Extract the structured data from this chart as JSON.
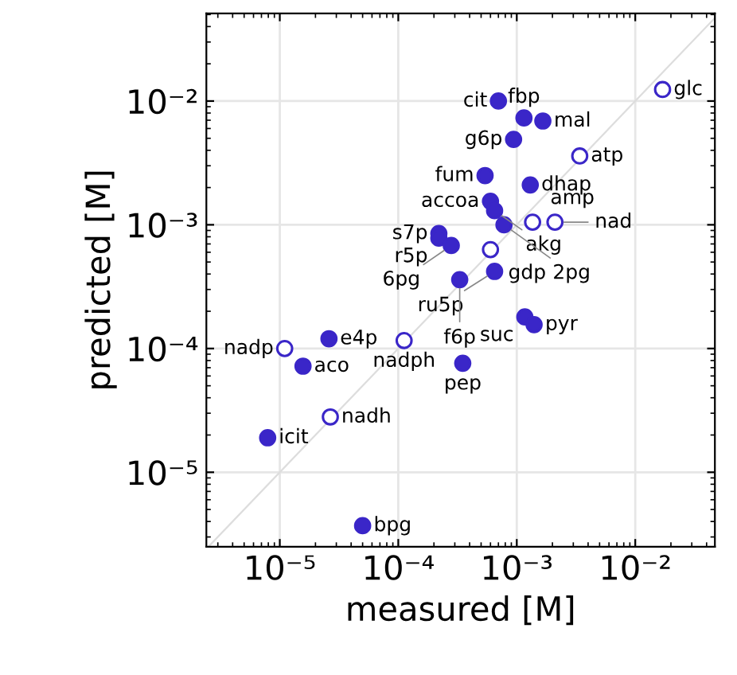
{
  "chart_data": {
    "type": "scatter",
    "xlabel": "measured [M]",
    "ylabel": "predicted [M]",
    "log": "xy",
    "grid": true,
    "marker": "circle",
    "xlim": [
      2.4e-06,
      0.047
    ],
    "ylim": [
      2.5e-06,
      0.051
    ],
    "xticks": [
      {
        "value": 1e-05,
        "label": "10⁻⁵"
      },
      {
        "value": 0.0001,
        "label": "10⁻⁴"
      },
      {
        "value": 0.001,
        "label": "10⁻³"
      },
      {
        "value": 0.01,
        "label": "10⁻²"
      }
    ],
    "yticks": [
      {
        "value": 1e-05,
        "label": "10⁻⁵"
      },
      {
        "value": 0.0001,
        "label": "10⁻⁴"
      },
      {
        "value": 0.001,
        "label": "10⁻³"
      },
      {
        "value": 0.01,
        "label": "10⁻²"
      }
    ],
    "series": [
      {
        "type": "line",
        "marker": "none",
        "color": "#dddddd",
        "x": [
          2.5e-06,
          0.047
        ],
        "values": [
          2.5e-06,
          0.047
        ]
      },
      {
        "color": "#3a26c8",
        "x": [
          0.0007,
          0.00115,
          0.00166,
          0.00094,
          0.00054,
          0.0013,
          0.0006,
          0.00065,
          0.00078,
          0.00022,
          0.00022,
          0.00028,
          0.00065,
          0.00033,
          0.00117,
          0.0014,
          0.00035,
          2.6e-05,
          1.57e-05,
          7.9e-06,
          5e-05
        ],
        "values": [
          0.01,
          0.0073,
          0.0069,
          0.0049,
          0.0025,
          0.0021,
          0.00155,
          0.0013,
          0.001,
          0.00085,
          0.00078,
          0.00068,
          0.00042,
          0.00036,
          0.00018,
          0.000156,
          7.6e-05,
          0.00012,
          7.2e-05,
          1.9e-05,
          3.7e-06
        ]
      },
      {
        "color": "#3a26c8",
        "x": [
          0.017,
          0.0034,
          0.00136,
          0.0021,
          0.0006,
          0.000112,
          1.1e-05,
          2.67e-05
        ],
        "values": [
          0.0124,
          0.0036,
          0.00105,
          0.00105,
          0.00063,
          0.000116,
          0.0001,
          2.8e-05
        ]
      }
    ],
    "annotations": [
      {
        "text": "cit",
        "x": 0.0007,
        "y": 0.01
      },
      {
        "text": "fbp",
        "x": 0.00115,
        "y": 0.0073
      },
      {
        "text": "mal",
        "x": 0.00166,
        "y": 0.0069
      },
      {
        "text": "g6p",
        "x": 0.00094,
        "y": 0.0049
      },
      {
        "text": "fum",
        "x": 0.00054,
        "y": 0.0025
      },
      {
        "text": "dhap",
        "x": 0.0013,
        "y": 0.0021
      },
      {
        "text": "accoa",
        "x": 0.0006,
        "y": 0.00155
      },
      {
        "text": "akg",
        "x": 0.00065,
        "y": 0.0013
      },
      {
        "text": "2pg",
        "x": 0.00078,
        "y": 0.001
      },
      {
        "text": "s7p",
        "x": 0.00022,
        "y": 0.00085
      },
      {
        "text": "r5p",
        "x": 0.00022,
        "y": 0.00078
      },
      {
        "text": "6pg",
        "x": 0.00028,
        "y": 0.00068
      },
      {
        "text": "ru5p",
        "x": 0.00065,
        "y": 0.00042
      },
      {
        "text": "f6p",
        "x": 0.00033,
        "y": 0.00036
      },
      {
        "text": "suc",
        "x": 0.00117,
        "y": 0.00018
      },
      {
        "text": "pyr",
        "x": 0.0014,
        "y": 0.000156
      },
      {
        "text": "pep",
        "x": 0.00035,
        "y": 7.6e-05
      },
      {
        "text": "e4p",
        "x": 2.6e-05,
        "y": 0.00012
      },
      {
        "text": "aco",
        "x": 1.57e-05,
        "y": 7.2e-05
      },
      {
        "text": "icit",
        "x": 7.9e-06,
        "y": 1.9e-05
      },
      {
        "text": "bpg",
        "x": 5e-05,
        "y": 3.7e-06
      },
      {
        "text": "glc",
        "x": 0.017,
        "y": 0.0124
      },
      {
        "text": "atp",
        "x": 0.0034,
        "y": 0.0036
      },
      {
        "text": "amp",
        "x": 0.00136,
        "y": 0.00105
      },
      {
        "text": "nad",
        "x": 0.0021,
        "y": 0.00105
      },
      {
        "text": "gdp",
        "x": 0.0006,
        "y": 0.00063
      },
      {
        "text": "nadph",
        "x": 0.000112,
        "y": 0.000116
      },
      {
        "text": "nadp",
        "x": 1.1e-05,
        "y": 0.0001
      },
      {
        "text": "nadh",
        "x": 2.67e-05,
        "y": 2.8e-05
      }
    ]
  }
}
